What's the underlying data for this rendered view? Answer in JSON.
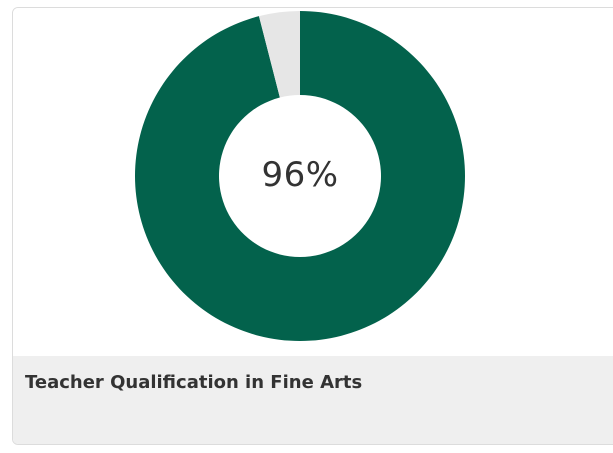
{
  "card": {
    "caption": "Teacher Qualification in Fine Arts"
  },
  "chart_data": {
    "type": "pie",
    "center_label": "96%",
    "slices": [
      {
        "value": 96,
        "color": "#03624c"
      },
      {
        "value": 4,
        "color": "#e6e6e6"
      }
    ],
    "start_at": "top",
    "direction": "clockwise",
    "donut": true
  }
}
